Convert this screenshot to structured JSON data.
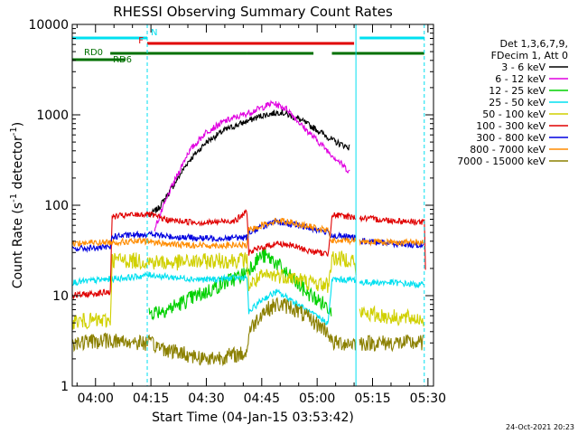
{
  "chart_data": {
    "type": "line",
    "title": "RHESSI Observing Summary Count Rates",
    "xlabel": "Start Time (04-Jan-15 03:53:42)",
    "ylabel_main": "Count Rate (s",
    "ylabel_sup1": "-1",
    "ylabel_mid": " detector",
    "ylabel_sup2": "-1",
    "ylabel_end": ")",
    "xlim": [
      "03:53:42",
      "05:31:30"
    ],
    "ylim": [
      1,
      10000
    ],
    "yscale": "log",
    "x_ticks": [
      "04:00",
      "04:15",
      "04:30",
      "04:45",
      "05:00",
      "05:15",
      "05:30"
    ],
    "y_ticks": [
      {
        "value": 1,
        "label": "1"
      },
      {
        "value": 10,
        "label": "10"
      },
      {
        "value": 100,
        "label": "100"
      },
      {
        "value": 1000,
        "label": "1000"
      },
      {
        "value": 10000,
        "label": "10000"
      }
    ],
    "legend_title": [
      "Det 1,3,6,7,9,",
      "FDecim 1, Att 0"
    ],
    "legend_position": "right",
    "timestamp": "24-Oct-2021 20:23",
    "flag_bars": [
      {
        "label": "N",
        "color": "#00e0f0",
        "segments": [
          [
            "03:53:42",
            "04:14:00"
          ],
          [
            "05:11:30",
            "05:29:00"
          ]
        ]
      },
      {
        "label": "F",
        "color": "#e00000",
        "segments": [
          [
            "04:14:00",
            "05:10:00"
          ]
        ]
      },
      {
        "label": "RD0",
        "color": "#007000",
        "segments": [
          [
            "04:04:00",
            "04:41:00"
          ],
          [
            "04:41:00",
            "04:59:00"
          ],
          [
            "05:04:00",
            "05:29:00"
          ]
        ]
      },
      {
        "label": "RD6",
        "color": "#007000",
        "segments": [
          [
            "03:53:42",
            "04:08:00"
          ]
        ]
      }
    ],
    "night_markers": [
      "04:14:00",
      "05:10:30",
      "05:29:00"
    ],
    "data_gaps": [
      [
        "05:10:30",
        "05:11:30"
      ]
    ],
    "series": [
      {
        "name": "3 - 6 keV",
        "color": "#000000",
        "points": [
          [
            "04:15:00",
            80
          ],
          [
            "04:17:00",
            92
          ],
          [
            "04:20:00",
            140
          ],
          [
            "04:25:00",
            300
          ],
          [
            "04:30:00",
            500
          ],
          [
            "04:35:00",
            680
          ],
          [
            "04:40:00",
            820
          ],
          [
            "04:45:00",
            980
          ],
          [
            "04:50:00",
            1080
          ],
          [
            "04:55:00",
            900
          ],
          [
            "05:00:00",
            680
          ],
          [
            "05:05:00",
            500
          ],
          [
            "05:09:00",
            430
          ]
        ]
      },
      {
        "name": "6 - 12 keV",
        "color": "#e000e0",
        "points": [
          [
            "04:16:00",
            55
          ],
          [
            "04:20:00",
            140
          ],
          [
            "04:25:00",
            380
          ],
          [
            "04:30:00",
            650
          ],
          [
            "04:35:00",
            850
          ],
          [
            "04:40:00",
            1000
          ],
          [
            "04:45:00",
            1200
          ],
          [
            "04:48:00",
            1350
          ],
          [
            "04:52:00",
            1150
          ],
          [
            "04:56:00",
            750
          ],
          [
            "05:00:00",
            520
          ],
          [
            "05:05:00",
            330
          ],
          [
            "05:09:00",
            230
          ]
        ]
      },
      {
        "name": "12 - 25 keV",
        "color": "#00d000",
        "points": [
          [
            "04:14:30",
            6.5
          ],
          [
            "04:20:00",
            7.2
          ],
          [
            "04:25:00",
            9
          ],
          [
            "04:30:00",
            11
          ],
          [
            "04:35:00",
            14
          ],
          [
            "04:40:00",
            17
          ],
          [
            "04:41:30",
            20
          ],
          [
            "04:45:00",
            28
          ],
          [
            "04:48:00",
            25
          ],
          [
            "04:52:00",
            17
          ],
          [
            "04:56:00",
            12
          ],
          [
            "05:00:00",
            9
          ],
          [
            "05:04:00",
            7
          ]
        ]
      },
      {
        "name": "25 - 50 keV",
        "color": "#00e0f0",
        "points": [
          [
            "03:53:42",
            14
          ],
          [
            "04:02:00",
            15
          ],
          [
            "04:10:00",
            16
          ],
          [
            "04:15:00",
            17
          ],
          [
            "04:20:00",
            16
          ],
          [
            "04:30:00",
            15
          ],
          [
            "04:41:00",
            16
          ],
          [
            "04:41:30",
            6.5
          ],
          [
            "04:45:00",
            9
          ],
          [
            "04:49:00",
            11
          ],
          [
            "04:53:00",
            9
          ],
          [
            "04:58:00",
            6.5
          ],
          [
            "05:03:00",
            5
          ],
          [
            "05:04:00",
            15
          ],
          [
            "05:10:00",
            15
          ],
          [
            "05:11:30",
            14
          ],
          [
            "05:20:00",
            14
          ],
          [
            "05:29:00",
            13
          ]
        ]
      },
      {
        "name": "50 - 100 keV",
        "color": "#d0d000",
        "points": [
          [
            "03:53:42",
            5.2
          ],
          [
            "04:04:00",
            5.3
          ],
          [
            "04:04:30",
            25
          ],
          [
            "04:14:00",
            24
          ],
          [
            "04:20:00",
            23
          ],
          [
            "04:30:00",
            24
          ],
          [
            "04:41:00",
            25
          ],
          [
            "04:41:30",
            13
          ],
          [
            "04:45:00",
            16
          ],
          [
            "04:49:00",
            17
          ],
          [
            "04:53:00",
            16
          ],
          [
            "04:58:00",
            14
          ],
          [
            "05:03:00",
            13
          ],
          [
            "05:04:00",
            26
          ],
          [
            "05:10:00",
            25
          ],
          [
            "05:11:30",
            6.5
          ],
          [
            "05:20:00",
            5.8
          ],
          [
            "05:29:00",
            5.5
          ]
        ]
      },
      {
        "name": "100 - 300 keV",
        "color": "#e00000",
        "points": [
          [
            "03:53:42",
            10
          ],
          [
            "04:04:00",
            11
          ],
          [
            "04:04:30",
            75
          ],
          [
            "04:10:00",
            78
          ],
          [
            "04:14:00",
            80
          ],
          [
            "04:20:00",
            68
          ],
          [
            "04:30:00",
            64
          ],
          [
            "04:38:00",
            68
          ],
          [
            "04:41:00",
            85
          ],
          [
            "04:41:30",
            30
          ],
          [
            "04:45:00",
            34
          ],
          [
            "04:49:00",
            38
          ],
          [
            "04:53:00",
            36
          ],
          [
            "04:58:00",
            31
          ],
          [
            "05:03:00",
            29
          ],
          [
            "05:04:00",
            78
          ],
          [
            "05:10:00",
            74
          ],
          [
            "05:11:30",
            72
          ],
          [
            "05:20:00",
            68
          ],
          [
            "05:29:00",
            65
          ],
          [
            "05:29:30",
            11
          ]
        ]
      },
      {
        "name": "300 - 800 keV",
        "color": "#0000e0",
        "points": [
          [
            "03:53:42",
            33
          ],
          [
            "04:04:00",
            34
          ],
          [
            "04:04:30",
            45
          ],
          [
            "04:14:00",
            48
          ],
          [
            "04:20:00",
            45
          ],
          [
            "04:30:00",
            43
          ],
          [
            "04:41:00",
            44
          ],
          [
            "04:41:30",
            50
          ],
          [
            "04:45:00",
            58
          ],
          [
            "04:49:00",
            65
          ],
          [
            "04:53:00",
            62
          ],
          [
            "04:58:00",
            56
          ],
          [
            "05:03:00",
            50
          ],
          [
            "05:04:00",
            46
          ],
          [
            "05:10:00",
            44
          ],
          [
            "05:11:30",
            40
          ],
          [
            "05:20:00",
            38
          ],
          [
            "05:29:00",
            36
          ]
        ]
      },
      {
        "name": "800 - 7000 keV",
        "color": "#ff8c00",
        "points": [
          [
            "03:53:42",
            38
          ],
          [
            "04:04:00",
            39
          ],
          [
            "04:14:00",
            40
          ],
          [
            "04:20:00",
            37
          ],
          [
            "04:30:00",
            36
          ],
          [
            "04:41:00",
            36
          ],
          [
            "04:41:30",
            53
          ],
          [
            "04:45:00",
            60
          ],
          [
            "04:49:00",
            68
          ],
          [
            "04:53:00",
            65
          ],
          [
            "04:58:00",
            58
          ],
          [
            "05:03:00",
            52
          ],
          [
            "05:04:00",
            40
          ],
          [
            "05:10:00",
            41
          ],
          [
            "05:11:30",
            40
          ],
          [
            "05:20:00",
            39
          ],
          [
            "05:29:00",
            39
          ]
        ]
      },
      {
        "name": "7000 - 15000 keV",
        "color": "#8b8000",
        "points": [
          [
            "03:53:42",
            3
          ],
          [
            "04:04:00",
            3.2
          ],
          [
            "04:14:00",
            3
          ],
          [
            "04:20:00",
            2.5
          ],
          [
            "04:30:00",
            2
          ],
          [
            "04:41:00",
            2.3
          ],
          [
            "04:41:30",
            4
          ],
          [
            "04:45:00",
            6.5
          ],
          [
            "04:49:00",
            8
          ],
          [
            "04:53:00",
            7.5
          ],
          [
            "04:58:00",
            5.5
          ],
          [
            "05:03:00",
            4
          ],
          [
            "05:04:00",
            3
          ],
          [
            "05:10:00",
            3
          ],
          [
            "05:11:30",
            3
          ],
          [
            "05:20:00",
            3
          ],
          [
            "05:29:00",
            3
          ]
        ]
      }
    ]
  }
}
